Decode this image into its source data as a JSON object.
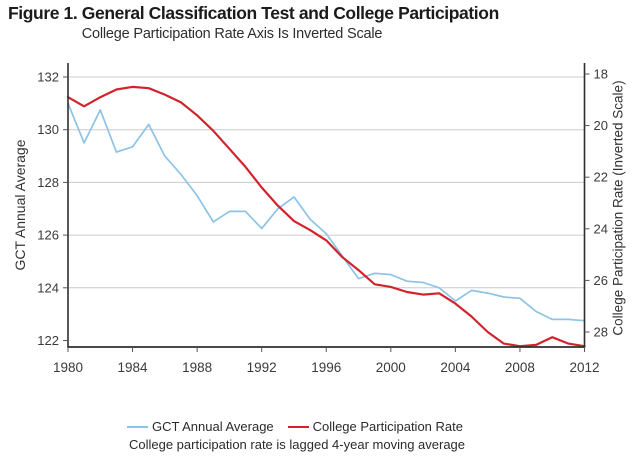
{
  "figure": {
    "title": "Figure 1. General Classification Test and College Participation",
    "subtitle": "College Participation Rate Axis Is Inverted Scale",
    "note": "College participation rate is lagged 4-year moving average"
  },
  "chart_data": {
    "type": "line",
    "title": "Figure 1. General Classification Test and College Participation",
    "subtitle": "College Participation Rate Axis Is Inverted Scale",
    "note": "College participation rate is lagged 4-year moving average",
    "grid": true,
    "legend_position": "bottom",
    "x": [
      1980,
      1981,
      1982,
      1983,
      1984,
      1985,
      1986,
      1987,
      1988,
      1989,
      1990,
      1991,
      1992,
      1993,
      1994,
      1995,
      1996,
      1997,
      1998,
      1999,
      2000,
      2001,
      2002,
      2003,
      2004,
      2005,
      2006,
      2007,
      2008,
      2009,
      2010,
      2011,
      2012
    ],
    "series": [
      {
        "name": "GCT Annual Average",
        "axis": "left",
        "color": "#8CC3E6",
        "values": [
          131.0,
          129.5,
          130.75,
          129.15,
          129.35,
          130.2,
          129.0,
          128.3,
          127.5,
          126.5,
          126.9,
          126.9,
          126.25,
          127.0,
          127.45,
          126.6,
          126.05,
          125.2,
          124.35,
          124.55,
          124.5,
          124.25,
          124.2,
          124.0,
          123.5,
          123.9,
          123.8,
          123.65,
          123.6,
          123.1,
          122.8,
          122.8,
          122.75
        ]
      },
      {
        "name": "College Participation Rate",
        "axis": "right",
        "color": "#D2232D",
        "values": [
          18.9,
          19.25,
          18.9,
          18.6,
          18.5,
          18.55,
          18.8,
          19.1,
          19.6,
          20.2,
          20.9,
          21.6,
          22.4,
          23.1,
          23.7,
          24.05,
          24.45,
          25.1,
          25.6,
          26.15,
          26.25,
          26.45,
          26.55,
          26.5,
          26.9,
          27.4,
          28.0,
          28.45,
          28.55,
          28.5,
          28.2,
          28.45,
          28.55
        ]
      }
    ],
    "x_axis": {
      "ticks": [
        1980,
        1984,
        1988,
        1992,
        1996,
        2000,
        2004,
        2008,
        2012
      ],
      "range": [
        1980,
        2012
      ]
    },
    "left_axis": {
      "label": "GCT Annual Average",
      "ticks": [
        122,
        124,
        126,
        128,
        130,
        132
      ],
      "range": [
        122,
        132
      ]
    },
    "right_axis": {
      "label": "College Participation Rate (Inverted Scale)",
      "ticks": [
        18,
        20,
        22,
        24,
        26,
        28
      ],
      "range": [
        18,
        28
      ],
      "inverted": true
    }
  }
}
